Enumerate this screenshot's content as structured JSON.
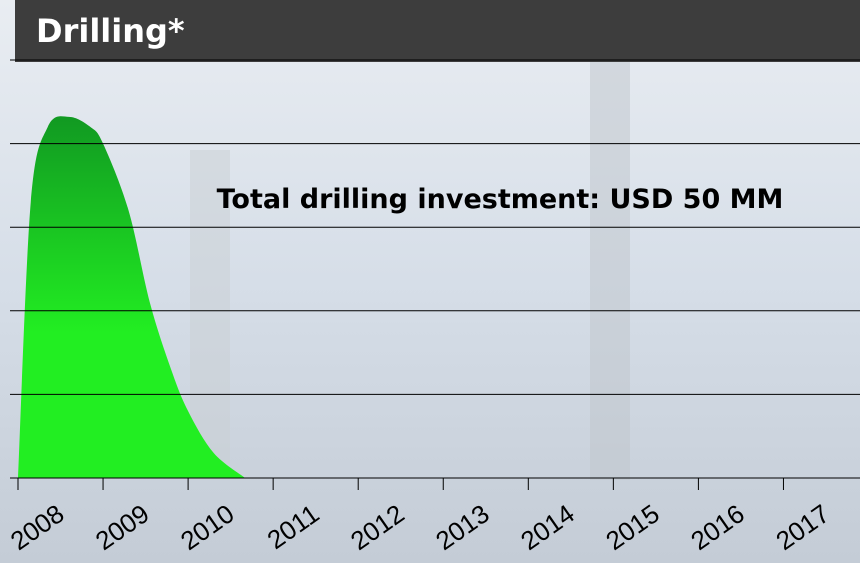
{
  "chart_data": {
    "type": "area",
    "title": "Drilling*",
    "annotation": "Total drilling investment: USD 50 MM",
    "x": [
      2008,
      2008.15,
      2008.35,
      2008.6,
      2008.85,
      2009.0,
      2009.3,
      2009.55,
      2009.8,
      2010,
      2010.3,
      2010.67
    ],
    "values": [
      0,
      3.3,
      4.2,
      4.32,
      4.2,
      4.0,
      3.2,
      2.1,
      1.3,
      0.8,
      0.3,
      0
    ],
    "color": "#22ee22",
    "xlim": [
      2008,
      2017.9
    ],
    "xticks": [
      2008,
      2009,
      2010,
      2011,
      2012,
      2013,
      2014,
      2015,
      2016,
      2017
    ],
    "ylim": [
      0,
      5
    ],
    "yticks": [
      0,
      1,
      2,
      3,
      4,
      5
    ],
    "grid": true
  }
}
